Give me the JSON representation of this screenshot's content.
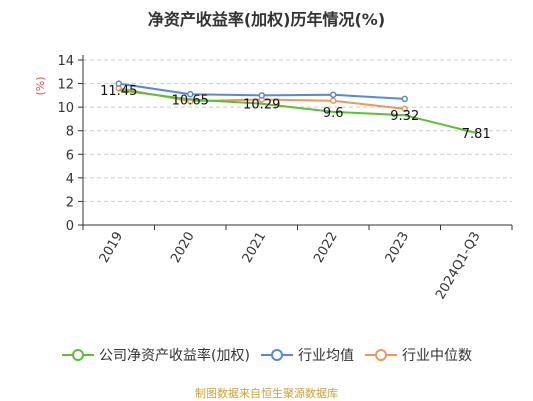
{
  "chart_data": {
    "type": "line",
    "title": "净资产收益率(加权)历年情况(%)",
    "ylabel": "(%)",
    "xlabel": "",
    "categories": [
      "2019",
      "2020",
      "2021",
      "2022",
      "2023",
      "2024Q1-Q3"
    ],
    "ylim": [
      0,
      14
    ],
    "yticks": [
      0,
      2,
      4,
      6,
      8,
      10,
      12,
      14
    ],
    "grid": true,
    "legend_position": "bottom",
    "series": [
      {
        "name": "公司净资产收益率(加权)",
        "color": "#5fbd3a",
        "values": [
          11.45,
          10.65,
          10.29,
          9.6,
          9.32,
          7.81
        ],
        "labels": [
          "11.45",
          "10.65",
          "10.29",
          "9.6",
          "9.32",
          "7.81"
        ]
      },
      {
        "name": "行业均值",
        "color": "#5b87d8",
        "values": [
          12.0,
          11.1,
          11.0,
          11.05,
          10.7,
          null
        ]
      },
      {
        "name": "行业中位数",
        "color": "#f0965f",
        "values": [
          11.6,
          10.5,
          10.65,
          10.55,
          9.85,
          null
        ]
      }
    ]
  },
  "footer": {
    "source": "制图数据来自恒生聚源数据库"
  }
}
